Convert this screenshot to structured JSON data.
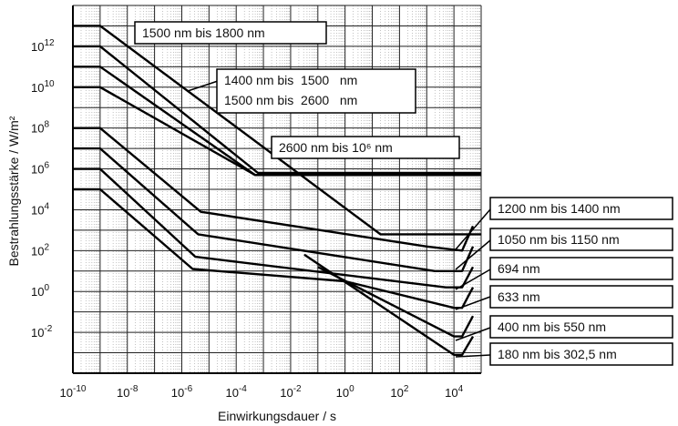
{
  "chart_data": {
    "type": "line",
    "title": "",
    "xlabel": "Einwirkungsdauer / s",
    "ylabel": "Bestrahlungsstärke / W/m²",
    "x_scale": "log",
    "y_scale": "log",
    "xlim_exp": [
      -10,
      5
    ],
    "ylim_exp": [
      -4,
      14
    ],
    "grid": true,
    "x_ticks": [
      {
        "exp": -10,
        "mantissa": "10",
        "sup": "-10"
      },
      {
        "exp": -8,
        "mantissa": "10",
        "sup": "-8"
      },
      {
        "exp": -6,
        "mantissa": "10",
        "sup": "-6"
      },
      {
        "exp": -4,
        "mantissa": "10",
        "sup": "-4"
      },
      {
        "exp": -2,
        "mantissa": "10",
        "sup": "-2"
      },
      {
        "exp": 0,
        "mantissa": "10",
        "sup": "0"
      },
      {
        "exp": 2,
        "mantissa": "10",
        "sup": "2"
      },
      {
        "exp": 4,
        "mantissa": "10",
        "sup": "4"
      }
    ],
    "y_ticks": [
      {
        "exp": 12,
        "mantissa": "10",
        "sup": "12"
      },
      {
        "exp": 10,
        "mantissa": "10",
        "sup": "10"
      },
      {
        "exp": 8,
        "mantissa": "10",
        "sup": "8"
      },
      {
        "exp": 6,
        "mantissa": "10",
        "sup": "6"
      },
      {
        "exp": 4,
        "mantissa": "10",
        "sup": "4"
      },
      {
        "exp": 2,
        "mantissa": "10",
        "sup": "2"
      },
      {
        "exp": 0,
        "mantissa": "10",
        "sup": "0"
      },
      {
        "exp": -2,
        "mantissa": "10",
        "sup": "-2"
      }
    ],
    "series": [
      {
        "name": "1500 nm bis 1800 nm",
        "points": [
          [
            -10,
            13
          ],
          [
            -9,
            13
          ],
          [
            1.3,
            2.8
          ],
          [
            2.6,
            2.8
          ],
          [
            5,
            2.8
          ]
        ]
      },
      {
        "name": "1400 nm bis 1500 nm",
        "points": [
          [
            -10,
            12
          ],
          [
            -9,
            12
          ],
          [
            -3.2,
            5.8
          ],
          [
            -2.2,
            5.8
          ],
          [
            5,
            5.8
          ]
        ]
      },
      {
        "name": "1500 nm bis 2600 nm",
        "points": [
          [
            -10,
            11
          ],
          [
            -9,
            11
          ],
          [
            -3.3,
            5.7
          ],
          [
            -2.1,
            5.7
          ],
          [
            5,
            5.7
          ]
        ]
      },
      {
        "name": "2600 nm bis 10⁶ nm",
        "points": [
          [
            -10,
            10
          ],
          [
            -9,
            10
          ],
          [
            -3.3,
            5.7
          ],
          [
            -2.1,
            5.7
          ],
          [
            5,
            5.7
          ]
        ]
      },
      {
        "name": "1200 nm bis 1400 nm",
        "points": [
          [
            -10,
            8
          ],
          [
            -9,
            8
          ],
          [
            -5.3,
            3.9
          ],
          [
            3.0,
            2.2
          ],
          [
            4.3,
            2.0
          ],
          [
            4.7,
            3.2
          ]
        ]
      },
      {
        "name": "1050 nm bis 1150 nm",
        "points": [
          [
            -10,
            7
          ],
          [
            -9,
            7
          ],
          [
            -5.4,
            2.8
          ],
          [
            3.3,
            1.0
          ],
          [
            4.3,
            1.0
          ],
          [
            4.7,
            2.2
          ]
        ]
      },
      {
        "name": "694 nm",
        "points": [
          [
            -10,
            6
          ],
          [
            -9,
            6
          ],
          [
            -5.5,
            1.7
          ],
          [
            3.7,
            0.2
          ],
          [
            4.3,
            0.2
          ],
          [
            4.7,
            1.2
          ]
        ]
      },
      {
        "name": "633 nm",
        "points": [
          [
            -10,
            5
          ],
          [
            -9,
            5
          ],
          [
            -5.6,
            1.1
          ],
          [
            0,
            0.5
          ],
          [
            4.0,
            -0.8
          ],
          [
            4.3,
            -0.8
          ],
          [
            4.7,
            0.2
          ]
        ]
      },
      {
        "name": "400 nm bis 550 nm",
        "points": [
          [
            -1,
            1.2
          ],
          [
            4.0,
            -2.2
          ],
          [
            4.3,
            -2.2
          ],
          [
            4.7,
            -1.2
          ]
        ]
      },
      {
        "name": "180 nm bis 302,5 nm",
        "points": [
          [
            -1.5,
            1.8
          ],
          [
            4.0,
            -3.1
          ],
          [
            4.3,
            -3.1
          ],
          [
            4.7,
            -2.2
          ]
        ]
      }
    ],
    "labels": [
      {
        "series": "1500 nm bis 1800 nm",
        "lines": [
          "1500 nm bis 1800 nm"
        ]
      },
      {
        "series": "1400 nm bis 1500 nm",
        "lines": [
          "1400 nm bis  1500   nm",
          "1500 nm bis  2600   nm"
        ]
      },
      {
        "series": "2600 nm bis 10⁶ nm",
        "lines": [
          "2600 nm bis 10⁶ nm"
        ]
      },
      {
        "series": "1200 nm bis 1400 nm",
        "lines": [
          "1200 nm bis 1400 nm"
        ]
      },
      {
        "series": "1050 nm bis 1150 nm",
        "lines": [
          "1050 nm bis 1150 nm"
        ]
      },
      {
        "series": "694 nm",
        "lines": [
          "694 nm"
        ]
      },
      {
        "series": "633 nm",
        "lines": [
          "633 nm"
        ]
      },
      {
        "series": "400 nm bis 550 nm",
        "lines": [
          "400 nm bis 550 nm"
        ]
      },
      {
        "series": "180 nm bis 302,5 nm",
        "lines": [
          "180 nm bis 302,5 nm"
        ]
      }
    ]
  }
}
